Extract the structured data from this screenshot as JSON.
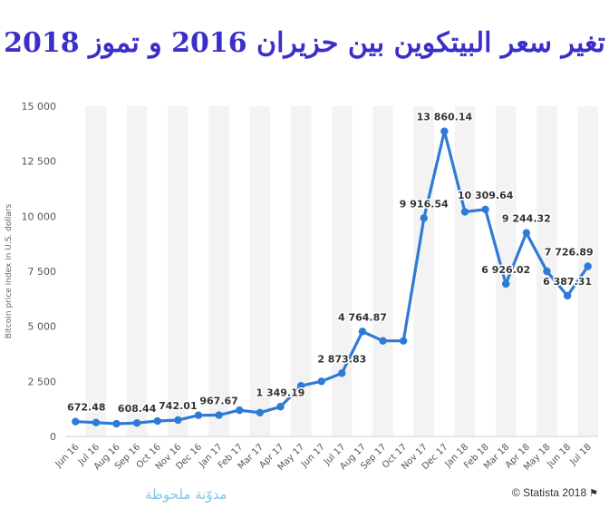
{
  "title": "تغير سعر البيتكوين بين حزيران 2016 و تموز 2018",
  "watermark": "مدوّنة ملحوظة",
  "credit": "© Statista 2018",
  "credit_icon": "flag-icon",
  "colors": {
    "line": "#2e7bd6",
    "title": "#3b2fc9",
    "band": "#f3f3f3"
  },
  "chart_data": {
    "type": "line",
    "ylabel": "Bitcoin price index in U.S. dollars",
    "ylim": [
      0,
      15000
    ],
    "yticks": [
      0,
      2500,
      5000,
      7500,
      10000,
      12500,
      15000
    ],
    "ytick_labels": [
      "0",
      "2 500",
      "5 000",
      "7 500",
      "10 000",
      "12 500",
      "15 000"
    ],
    "grid": "vertical bands",
    "categories": [
      "Jun 16",
      "Jul 16",
      "Aug 16",
      "Sep 16",
      "Oct 16",
      "Nov 16",
      "Dec 16",
      "Jan 17",
      "Feb 17",
      "Mar 17",
      "Apr 17",
      "May 17",
      "Jun 17",
      "Jul 17",
      "Aug 17",
      "Sep 17",
      "Oct 17",
      "Nov 17",
      "Dec 17",
      "Jan 18",
      "Feb 18",
      "Mar 18",
      "Apr 18",
      "May 18",
      "Jun 18",
      "Jul 18"
    ],
    "series": [
      {
        "values": [
          672.48,
          630,
          575,
          608.44,
          700,
          742.01,
          960,
          967.67,
          1190,
          1080,
          1349.19,
          2300,
          2500,
          2873.83,
          4764.87,
          4340,
          4340,
          9916.54,
          13860.14,
          10200,
          10309.64,
          6926.02,
          9244.32,
          7500,
          6387.31,
          7726.89
        ]
      }
    ],
    "data_labels": [
      {
        "index": 0,
        "text": "672.48"
      },
      {
        "index": 3,
        "text": "608.44"
      },
      {
        "index": 5,
        "text": "742.01"
      },
      {
        "index": 7,
        "text": "967.67"
      },
      {
        "index": 10,
        "text": "1 349.19"
      },
      {
        "index": 13,
        "text": "2 873.83"
      },
      {
        "index": 14,
        "text": "4 764.87"
      },
      {
        "index": 17,
        "text": "9 916.54"
      },
      {
        "index": 18,
        "text": "13 860.14"
      },
      {
        "index": 20,
        "text": "10 309.64"
      },
      {
        "index": 21,
        "text": "6 926.02"
      },
      {
        "index": 22,
        "text": "9 244.32"
      },
      {
        "index": 24,
        "text": "6 387.31"
      },
      {
        "index": 25,
        "text": "7 726.89"
      }
    ]
  }
}
